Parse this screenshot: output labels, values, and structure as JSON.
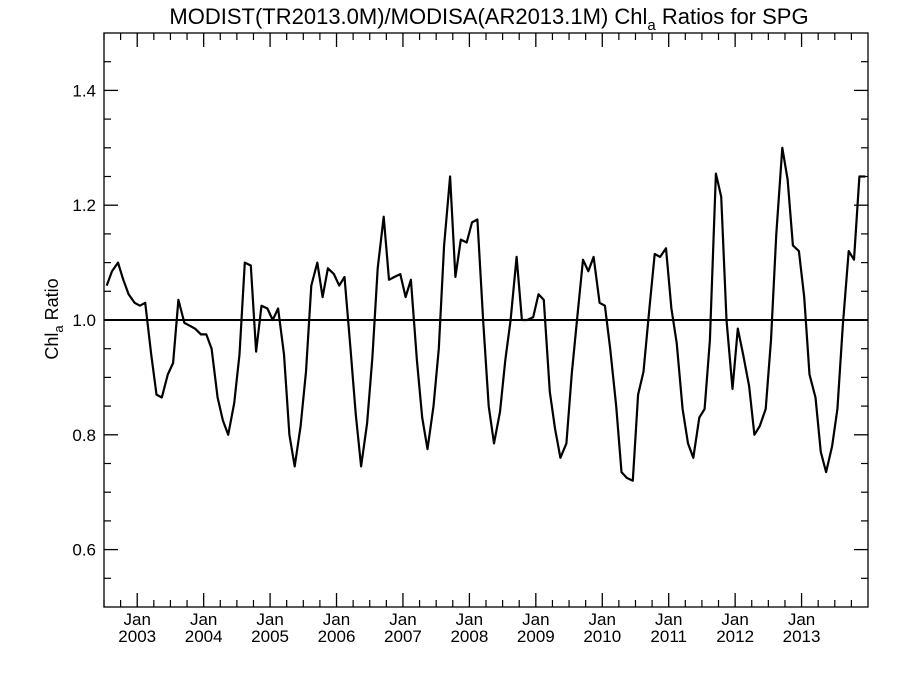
{
  "chart_data": {
    "type": "line",
    "title": {
      "main": "MODIST(TR2013.0M)/MODISA(AR2013.1M)  Chl",
      "subscript": "a",
      "rest": " Ratios for SPG"
    },
    "ylabel": {
      "main": "Chl",
      "subscript": "a",
      "rest": " Ratio"
    },
    "xlim": [
      2002.5,
      2014.0
    ],
    "ylim": [
      0.5,
      1.5
    ],
    "yticks": [
      0.6,
      0.8,
      1.0,
      1.2,
      1.4
    ],
    "ytick_labels": [
      "0.6",
      "0.8",
      "1.0",
      "1.2",
      "1.4"
    ],
    "xticks": [
      {
        "x": 2003,
        "month": "Jan",
        "year": "2003"
      },
      {
        "x": 2004,
        "month": "Jan",
        "year": "2004"
      },
      {
        "x": 2005,
        "month": "Jan",
        "year": "2005"
      },
      {
        "x": 2006,
        "month": "Jan",
        "year": "2006"
      },
      {
        "x": 2007,
        "month": "Jan",
        "year": "2007"
      },
      {
        "x": 2008,
        "month": "Jan",
        "year": "2008"
      },
      {
        "x": 2009,
        "month": "Jan",
        "year": "2009"
      },
      {
        "x": 2010,
        "month": "Jan",
        "year": "2010"
      },
      {
        "x": 2011,
        "month": "Jan",
        "year": "2011"
      },
      {
        "x": 2012,
        "month": "Jan",
        "year": "2012"
      },
      {
        "x": 2013,
        "month": "Jan",
        "year": "2013"
      }
    ],
    "reference_line": {
      "y": 1.0
    },
    "line_color": "#000000",
    "grid": false,
    "series": [
      {
        "x": [
          2002.54,
          2002.62,
          2002.71,
          2002.79,
          2002.87,
          2002.96,
          2003.04,
          2003.12,
          2003.21,
          2003.29,
          2003.37,
          2003.46,
          2003.54,
          2003.62,
          2003.71,
          2003.79,
          2003.87,
          2003.96,
          2004.04,
          2004.12,
          2004.21,
          2004.29,
          2004.37,
          2004.46,
          2004.54,
          2004.62,
          2004.71,
          2004.79,
          2004.87,
          2004.96,
          2005.04,
          2005.12,
          2005.21,
          2005.29,
          2005.37,
          2005.46,
          2005.54,
          2005.62,
          2005.71,
          2005.79,
          2005.87,
          2005.96,
          2006.04,
          2006.12,
          2006.21,
          2006.29,
          2006.37,
          2006.46,
          2006.54,
          2006.62,
          2006.71,
          2006.79,
          2006.87,
          2006.96,
          2007.04,
          2007.12,
          2007.21,
          2007.29,
          2007.37,
          2007.46,
          2007.54,
          2007.62,
          2007.71,
          2007.79,
          2007.87,
          2007.96,
          2008.04,
          2008.12,
          2008.21,
          2008.29,
          2008.37,
          2008.46,
          2008.54,
          2008.62,
          2008.71,
          2008.79,
          2008.87,
          2008.96,
          2009.04,
          2009.12,
          2009.21,
          2009.29,
          2009.37,
          2009.46,
          2009.54,
          2009.62,
          2009.71,
          2009.79,
          2009.87,
          2009.96,
          2010.04,
          2010.12,
          2010.21,
          2010.29,
          2010.37,
          2010.46,
          2010.54,
          2010.62,
          2010.71,
          2010.79,
          2010.87,
          2010.96,
          2011.04,
          2011.12,
          2011.21,
          2011.29,
          2011.37,
          2011.46,
          2011.54,
          2011.62,
          2011.71,
          2011.79,
          2011.87,
          2011.96,
          2012.04,
          2012.12,
          2012.21,
          2012.29,
          2012.37,
          2012.46,
          2012.54,
          2012.62,
          2012.71,
          2012.79,
          2012.87,
          2012.96,
          2013.04,
          2013.12,
          2013.21,
          2013.29,
          2013.37,
          2013.46,
          2013.54,
          2013.62,
          2013.71,
          2013.79,
          2013.87,
          2013.96
        ],
        "values": [
          1.06,
          1.085,
          1.1,
          1.07,
          1.045,
          1.03,
          1.025,
          1.03,
          0.94,
          0.87,
          0.865,
          0.905,
          0.925,
          1.035,
          0.995,
          0.99,
          0.985,
          0.975,
          0.975,
          0.95,
          0.865,
          0.825,
          0.8,
          0.855,
          0.94,
          1.1,
          1.095,
          0.945,
          1.025,
          1.02,
          1.0,
          1.02,
          0.94,
          0.8,
          0.745,
          0.815,
          0.91,
          1.06,
          1.1,
          1.04,
          1.09,
          1.08,
          1.06,
          1.075,
          0.95,
          0.835,
          0.745,
          0.82,
          0.935,
          1.09,
          1.18,
          1.07,
          1.075,
          1.08,
          1.04,
          1.07,
          0.93,
          0.83,
          0.775,
          0.85,
          0.95,
          1.13,
          1.25,
          1.075,
          1.14,
          1.135,
          1.17,
          1.175,
          0.995,
          0.85,
          0.785,
          0.84,
          0.93,
          1.0,
          1.11,
          1.0,
          1.0,
          1.005,
          1.045,
          1.035,
          0.875,
          0.81,
          0.76,
          0.785,
          0.905,
          1.0,
          1.105,
          1.085,
          1.11,
          1.03,
          1.025,
          0.95,
          0.85,
          0.735,
          0.725,
          0.72,
          0.87,
          0.91,
          1.02,
          1.115,
          1.11,
          1.125,
          1.02,
          0.96,
          0.845,
          0.785,
          0.76,
          0.83,
          0.845,
          0.965,
          1.255,
          1.215,
          1.0,
          0.88,
          0.985,
          0.94,
          0.885,
          0.8,
          0.815,
          0.845,
          0.965,
          1.15,
          1.3,
          1.245,
          1.13,
          1.12,
          1.04,
          0.905,
          0.865,
          0.77,
          0.735,
          0.78,
          0.845,
          0.99,
          1.12,
          1.105,
          1.25,
          1.25
        ]
      }
    ]
  }
}
